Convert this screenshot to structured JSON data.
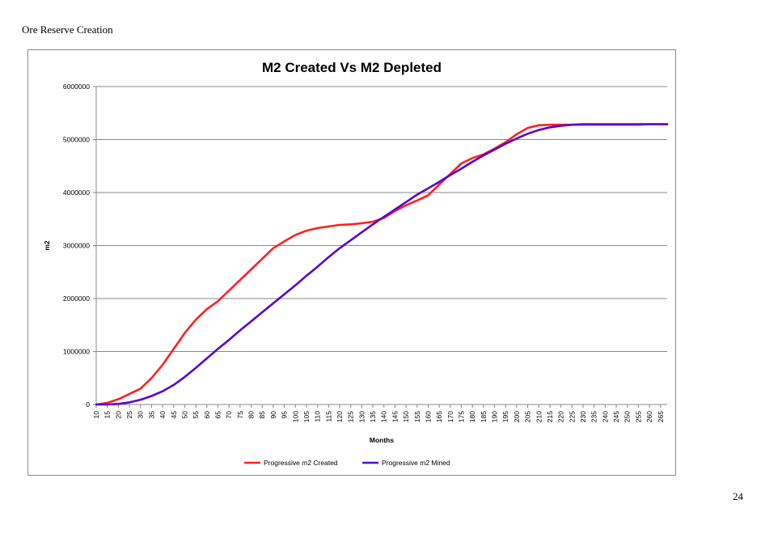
{
  "page": {
    "heading": "Ore Reserve Creation",
    "page_number": "24"
  },
  "chart_data": {
    "type": "line",
    "title": "M2 Created Vs M2 Depleted",
    "xlabel": "Months",
    "ylabel": "m2",
    "ylim": [
      0,
      6000000
    ],
    "yticks": [
      "0",
      "1000000",
      "2000000",
      "3000000",
      "4000000",
      "5000000",
      "6000000"
    ],
    "xlim": [
      10,
      268
    ],
    "xticks": [
      "10",
      "15",
      "20",
      "25",
      "30",
      "35",
      "40",
      "45",
      "50",
      "55",
      "60",
      "65",
      "70",
      "75",
      "80",
      "85",
      "90",
      "95",
      "100",
      "105",
      "110",
      "115",
      "120",
      "125",
      "130",
      "135",
      "140",
      "145",
      "150",
      "155",
      "160",
      "165",
      "170",
      "175",
      "180",
      "185",
      "190",
      "195",
      "200",
      "205",
      "210",
      "215",
      "220",
      "225",
      "230",
      "235",
      "240",
      "245",
      "250",
      "255",
      "260",
      "265"
    ],
    "grid": "horizontal",
    "legend_position": "bottom",
    "series": [
      {
        "name": "Progressive m2 Created",
        "color": "#ff2020",
        "x": [
          10,
          15,
          20,
          25,
          30,
          35,
          40,
          45,
          50,
          55,
          60,
          65,
          70,
          75,
          80,
          85,
          90,
          95,
          100,
          105,
          110,
          115,
          120,
          125,
          130,
          135,
          140,
          145,
          150,
          155,
          160,
          165,
          170,
          175,
          180,
          185,
          190,
          195,
          200,
          205,
          210,
          215,
          220,
          225,
          230,
          235,
          240,
          245,
          250,
          255,
          260,
          265,
          268
        ],
        "y": [
          0,
          30000,
          100000,
          200000,
          300000,
          500000,
          750000,
          1050000,
          1350000,
          1600000,
          1800000,
          1950000,
          2150000,
          2350000,
          2550000,
          2750000,
          2950000,
          3080000,
          3200000,
          3280000,
          3330000,
          3360000,
          3390000,
          3400000,
          3420000,
          3450000,
          3520000,
          3650000,
          3760000,
          3850000,
          3950000,
          4150000,
          4350000,
          4550000,
          4650000,
          4720000,
          4830000,
          4950000,
          5100000,
          5220000,
          5270000,
          5280000,
          5280000,
          5280000,
          5280000,
          5280000,
          5280000,
          5280000,
          5280000,
          5280000,
          5290000,
          5290000,
          5290000
        ]
      },
      {
        "name": "Progressive m2 Mined",
        "color": "#5a00d0",
        "x": [
          10,
          15,
          20,
          25,
          30,
          35,
          40,
          45,
          50,
          55,
          60,
          65,
          70,
          75,
          80,
          85,
          90,
          95,
          100,
          105,
          110,
          115,
          120,
          125,
          130,
          135,
          140,
          145,
          150,
          155,
          160,
          165,
          170,
          175,
          180,
          185,
          190,
          195,
          200,
          205,
          210,
          215,
          220,
          225,
          230,
          235,
          240,
          245,
          250,
          255,
          260,
          265,
          268
        ],
        "y": [
          0,
          0,
          10000,
          40000,
          90000,
          160000,
          250000,
          370000,
          520000,
          690000,
          870000,
          1050000,
          1220000,
          1400000,
          1570000,
          1740000,
          1910000,
          2080000,
          2250000,
          2430000,
          2600000,
          2780000,
          2950000,
          3100000,
          3250000,
          3400000,
          3540000,
          3680000,
          3820000,
          3960000,
          4080000,
          4200000,
          4330000,
          4450000,
          4580000,
          4700000,
          4810000,
          4920000,
          5020000,
          5110000,
          5180000,
          5230000,
          5260000,
          5280000,
          5290000,
          5290000,
          5290000,
          5290000,
          5290000,
          5290000,
          5290000,
          5290000,
          5290000
        ]
      }
    ]
  }
}
